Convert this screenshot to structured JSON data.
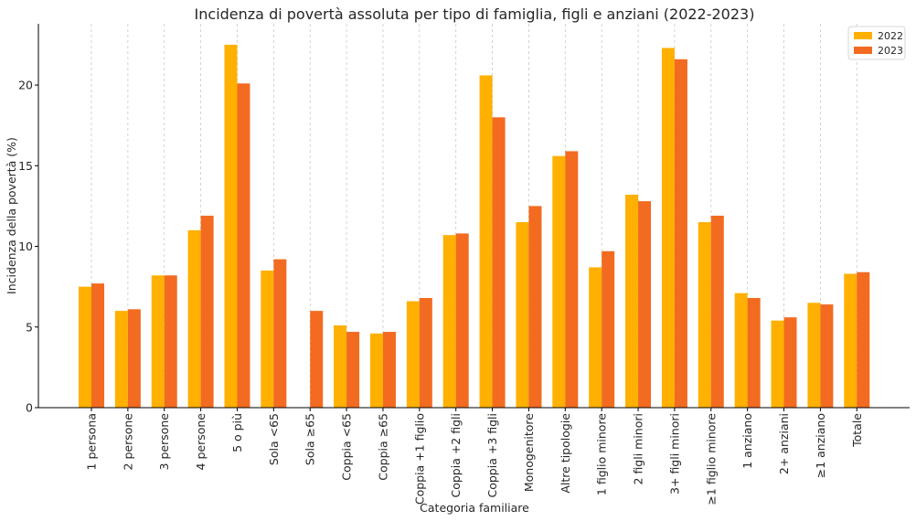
{
  "chart_data": {
    "type": "bar",
    "title": "Incidenza di povertà assoluta per tipo di famiglia, figli e anziani (2022-2023)",
    "xlabel": "Categoria familiare",
    "ylabel": "Incidenza della povertà (%)",
    "ylim": [
      0,
      23.8
    ],
    "yticks": [
      0,
      5,
      10,
      15,
      20
    ],
    "grid": "x-dashed",
    "legend_position": "top-right",
    "categories": [
      "1 persona",
      "2 persone",
      "3 persone",
      "4 persone",
      "5 o più",
      "Sola <65",
      "Sola ≥65",
      "Coppia <65",
      "Coppia ≥65",
      "Coppia +1 figlio",
      "Coppia +2 figli",
      "Coppia +3 figli",
      "Monogenitore",
      "Altre tipologie",
      "1 figlio minore",
      "2 figli minori",
      "3+ figli minori",
      "≥1 figlio minore",
      "1 anziano",
      "2+ anziani",
      "≥1 anziano",
      "Totale"
    ],
    "series": [
      {
        "name": "2022",
        "color": "#FFB000",
        "values": [
          7.5,
          6.0,
          8.2,
          11.0,
          22.5,
          8.5,
          null,
          5.1,
          4.6,
          6.6,
          10.7,
          20.6,
          11.5,
          15.6,
          8.7,
          13.2,
          22.3,
          11.5,
          7.1,
          5.4,
          6.5,
          8.3
        ]
      },
      {
        "name": "2023",
        "color": "#F26B21",
        "values": [
          7.7,
          6.1,
          8.2,
          11.9,
          20.1,
          9.2,
          6.0,
          4.7,
          4.7,
          6.8,
          10.8,
          18.0,
          12.5,
          15.9,
          9.7,
          12.8,
          21.6,
          11.9,
          6.8,
          5.6,
          6.4,
          8.4
        ]
      }
    ]
  }
}
